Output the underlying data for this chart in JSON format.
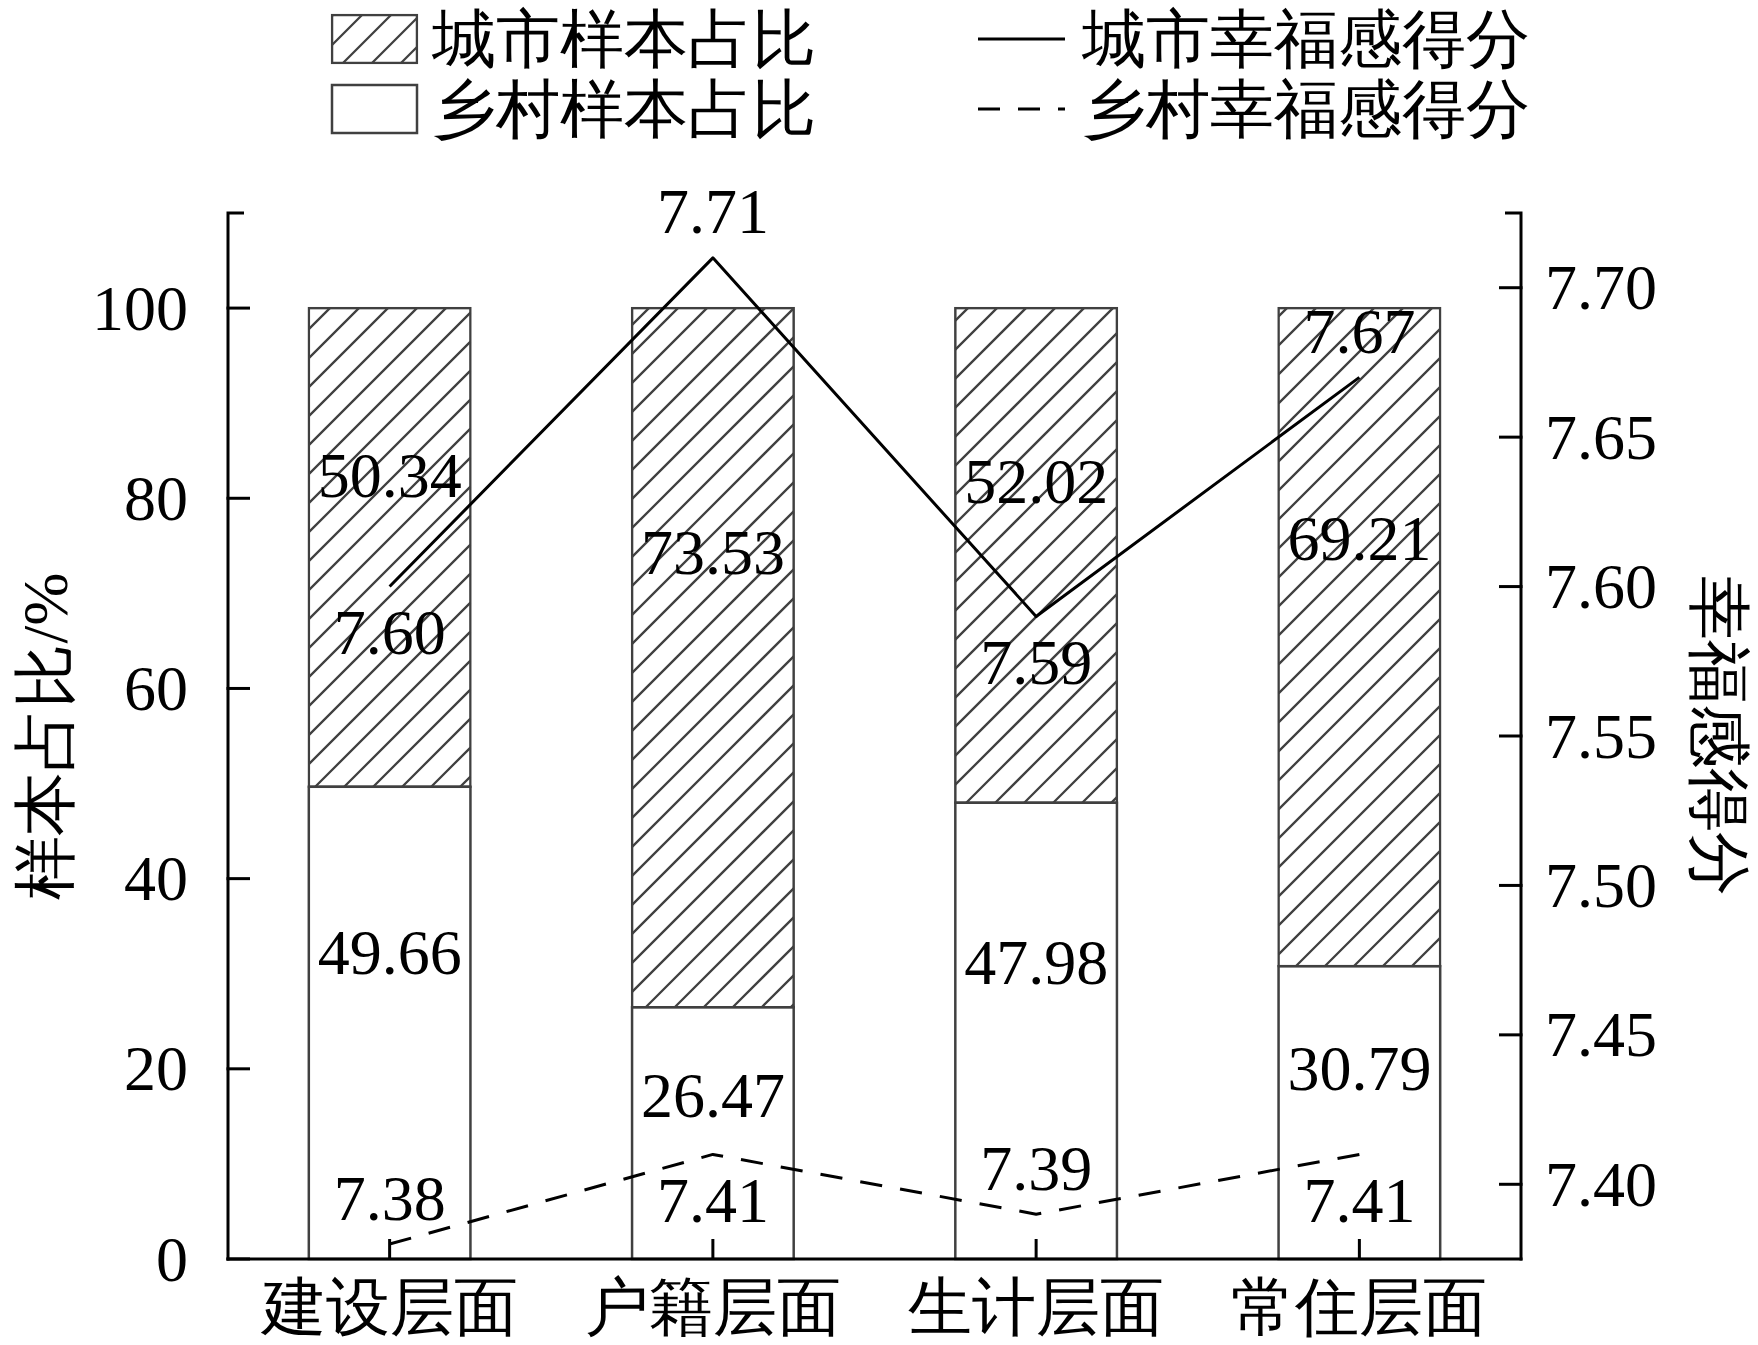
{
  "chart_data": {
    "type": "bar",
    "stacked": true,
    "categories": [
      "建设层面",
      "户籍层面",
      "生计层面",
      "常住层面"
    ],
    "ylabel": "样本占比/%",
    "y2label": "幸福感得分",
    "ylim": [
      0,
      110
    ],
    "yticks": [
      0,
      20,
      40,
      60,
      80,
      100
    ],
    "y2lim": [
      7.375,
      7.725
    ],
    "y2ticks": [
      {
        "value": 7.4,
        "label": "7.40"
      },
      7.45,
      {
        "value": 7.5,
        "label": "7.50"
      },
      7.55,
      {
        "value": 7.6,
        "label": "7.60"
      },
      7.65,
      {
        "value": 7.7,
        "label": "7.70"
      }
    ],
    "series": [
      {
        "name": "乡村样本占比",
        "color": "#ffffff",
        "values": [
          49.66,
          26.47,
          47.98,
          30.79
        ],
        "value_labels": [
          "49.66",
          "26.47",
          "47.98",
          "30.79"
        ]
      },
      {
        "name": "城市样本占比",
        "color": "#404040",
        "values": [
          50.34,
          73.53,
          52.02,
          69.21
        ],
        "value_labels": [
          "50.34",
          "73.53",
          "52.02",
          "69.21"
        ]
      },
      {
        "name": "城市幸福感得分",
        "type": "line",
        "axis": "y2",
        "color": "#000000",
        "line_style": "solid",
        "values": [
          7.6,
          7.71,
          7.59,
          7.67
        ],
        "value_labels": [
          "7.60",
          "7.71",
          "7.59",
          "7.67"
        ]
      },
      {
        "name": "乡村幸福感得分",
        "type": "line",
        "axis": "y2",
        "color": "#000000",
        "line_style": "dashed",
        "values": [
          7.38,
          7.41,
          7.39,
          7.41
        ],
        "value_labels": [
          "7.38",
          "7.41",
          "7.39",
          "7.41"
        ]
      }
    ],
    "legend": "top",
    "marker": "none"
  }
}
